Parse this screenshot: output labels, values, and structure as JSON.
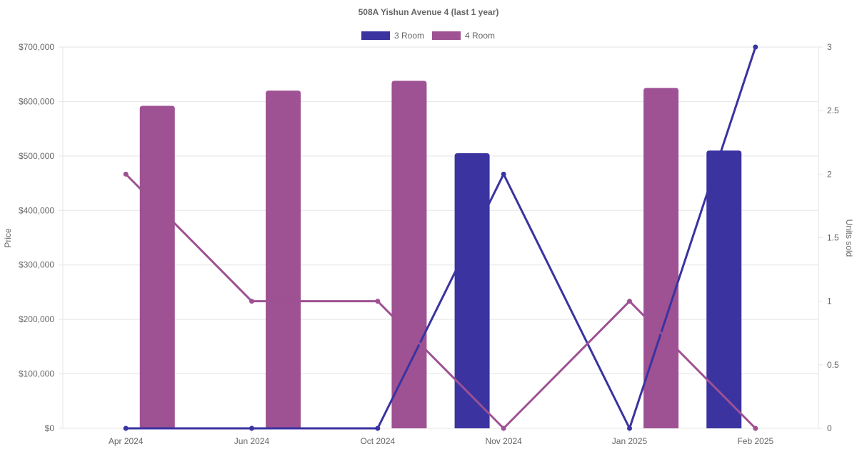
{
  "chart_data": {
    "type": "bar",
    "title": "508A Yishun Avenue 4 (last 1 year)",
    "categories": [
      "Apr 2024",
      "Jun 2024",
      "Oct 2024",
      "Nov 2024",
      "Jan 2025",
      "Feb 2025"
    ],
    "ylabel": "Price",
    "y2label": "Units sold",
    "ylim": [
      0,
      700000
    ],
    "y2lim": [
      0,
      3
    ],
    "y_ticks": [
      "$0",
      "$100,000",
      "$200,000",
      "$300,000",
      "$400,000",
      "$500,000",
      "$600,000",
      "$700,000"
    ],
    "y2_ticks": [
      "0",
      "0.5",
      "1",
      "1.5",
      "2",
      "2.5",
      "3"
    ],
    "legend": [
      "3 Room",
      "4 Room"
    ],
    "legend_position": "top",
    "grid": true,
    "series": [
      {
        "name": "3 Room",
        "color": "#3a33a0",
        "price": [
          null,
          null,
          null,
          505000,
          null,
          510000
        ],
        "units_sold": [
          0,
          0,
          0,
          2,
          0,
          3
        ]
      },
      {
        "name": "4 Room",
        "color": "#9e5193",
        "price": [
          592000,
          620000,
          638000,
          null,
          625000,
          null
        ],
        "units_sold": [
          2,
          1,
          1,
          0,
          1,
          0
        ]
      }
    ]
  }
}
